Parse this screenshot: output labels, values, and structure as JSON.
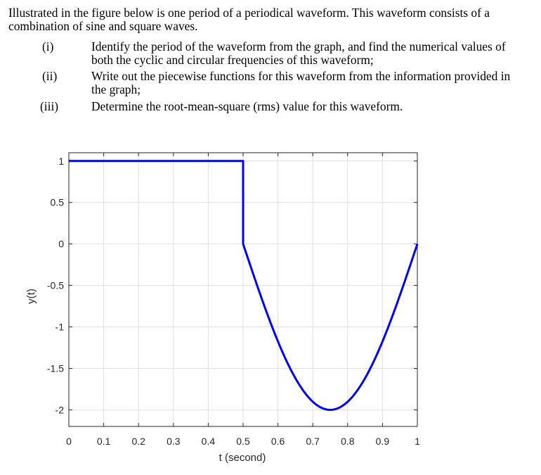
{
  "problem": {
    "intro": "Illustrated in the figure below is one period of a periodical waveform. This waveform consists of a combination of sine and square waves.",
    "questions": [
      {
        "num": "(i)",
        "text": "Identify the period of the waveform from the graph, and find the numerical values of both the cyclic and circular frequencies of this waveform;"
      },
      {
        "num": "(ii)",
        "text": "Write out the piecewise functions for this waveform from the information provided in the graph;"
      },
      {
        "num": "(iii)",
        "text": "Determine the root-mean-square (rms) value for this waveform."
      }
    ]
  },
  "chart_data": {
    "type": "line",
    "title": "",
    "xlabel": "t (second)",
    "ylabel": "y(t)",
    "xlim": [
      0,
      1
    ],
    "ylim": [
      -2.2,
      1.1
    ],
    "grid": true,
    "xticks": [
      0,
      0.1,
      0.2,
      0.3,
      0.4,
      0.5,
      0.6,
      0.7,
      0.8,
      0.9,
      1
    ],
    "xtick_labels": [
      "0",
      "0.1",
      "0.2",
      "0.3",
      "0.4",
      "0.5",
      "0.6",
      "0.7",
      "0.8",
      "0.9",
      "1"
    ],
    "yticks": [
      1,
      0.5,
      0,
      -0.5,
      -1,
      -1.5,
      -2
    ],
    "ytick_labels": [
      "1",
      "0.5",
      "0",
      "-0.5",
      "-1",
      "-1.5",
      "-2"
    ],
    "series": [
      {
        "color": "#0000ff",
        "segments": [
          {
            "kind": "square",
            "t_start": 0,
            "t_end": 0.5,
            "value": 1
          },
          {
            "kind": "jump",
            "t": 0.5,
            "from": 1,
            "to": 0
          },
          {
            "kind": "sine",
            "t_start": 0.5,
            "t_end": 1,
            "amplitude": 2,
            "period": 1,
            "expression": "2*sin(2*pi*t)"
          }
        ]
      }
    ]
  }
}
